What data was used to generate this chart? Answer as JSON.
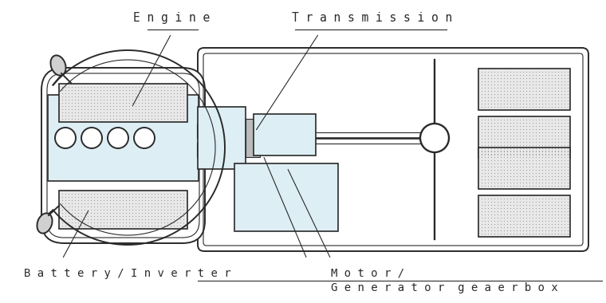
{
  "bg_color": "#ffffff",
  "line_color": "#2a2a2a",
  "fill_light": "#ddeef4",
  "fill_dot_bg": "#e8e8e8",
  "fill_dot_color": "#666666",
  "labels": {
    "engine": "E n g i n e",
    "transmission": "T r a n s m i s s i o n",
    "battery": "B a t t e r y / I n v e r t e r",
    "motor_line1": "M o t o r /",
    "motor_line2": "G e n e r a t o r  g e a e r b o x"
  }
}
